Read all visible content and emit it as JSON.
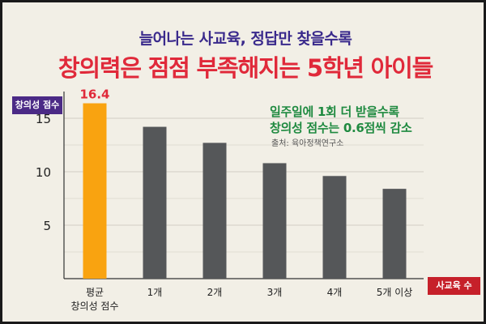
{
  "header": {
    "subtitle": "늘어나는 사교육, 정답만 찾을수록",
    "title": "창의력은 점점 부족해지는 5학년 아이들"
  },
  "callout": {
    "line1": "일주일에 1회 더 받을수록",
    "line2": "창의성 점수는 0.6점씩 감소",
    "source": "출처: 육아정책연구소"
  },
  "colors": {
    "highlight_bar": "#f9a310",
    "bar": "#555759",
    "title": "#e0293a",
    "subtitle": "#3a2a8c",
    "callout": "#1f8a40",
    "y_tag_bg": "#4b2a86",
    "x_tag_bg": "#c6202a",
    "background": "#f2efe6"
  },
  "chart_data": {
    "type": "bar",
    "ylabel": "창의성 점수",
    "xlabel": "사교육 수",
    "categories": [
      "평균\n창의성 점수",
      "1개",
      "2개",
      "3개",
      "4개",
      "5개 이상"
    ],
    "values": [
      16.4,
      14.2,
      12.7,
      10.8,
      9.6,
      8.4
    ],
    "data_labels": [
      "16.4",
      "",
      "",
      "",
      "",
      ""
    ],
    "yticks": [
      5,
      10,
      15
    ],
    "ylim": [
      0,
      17.5
    ],
    "grid": true,
    "highlight_index": 0
  }
}
